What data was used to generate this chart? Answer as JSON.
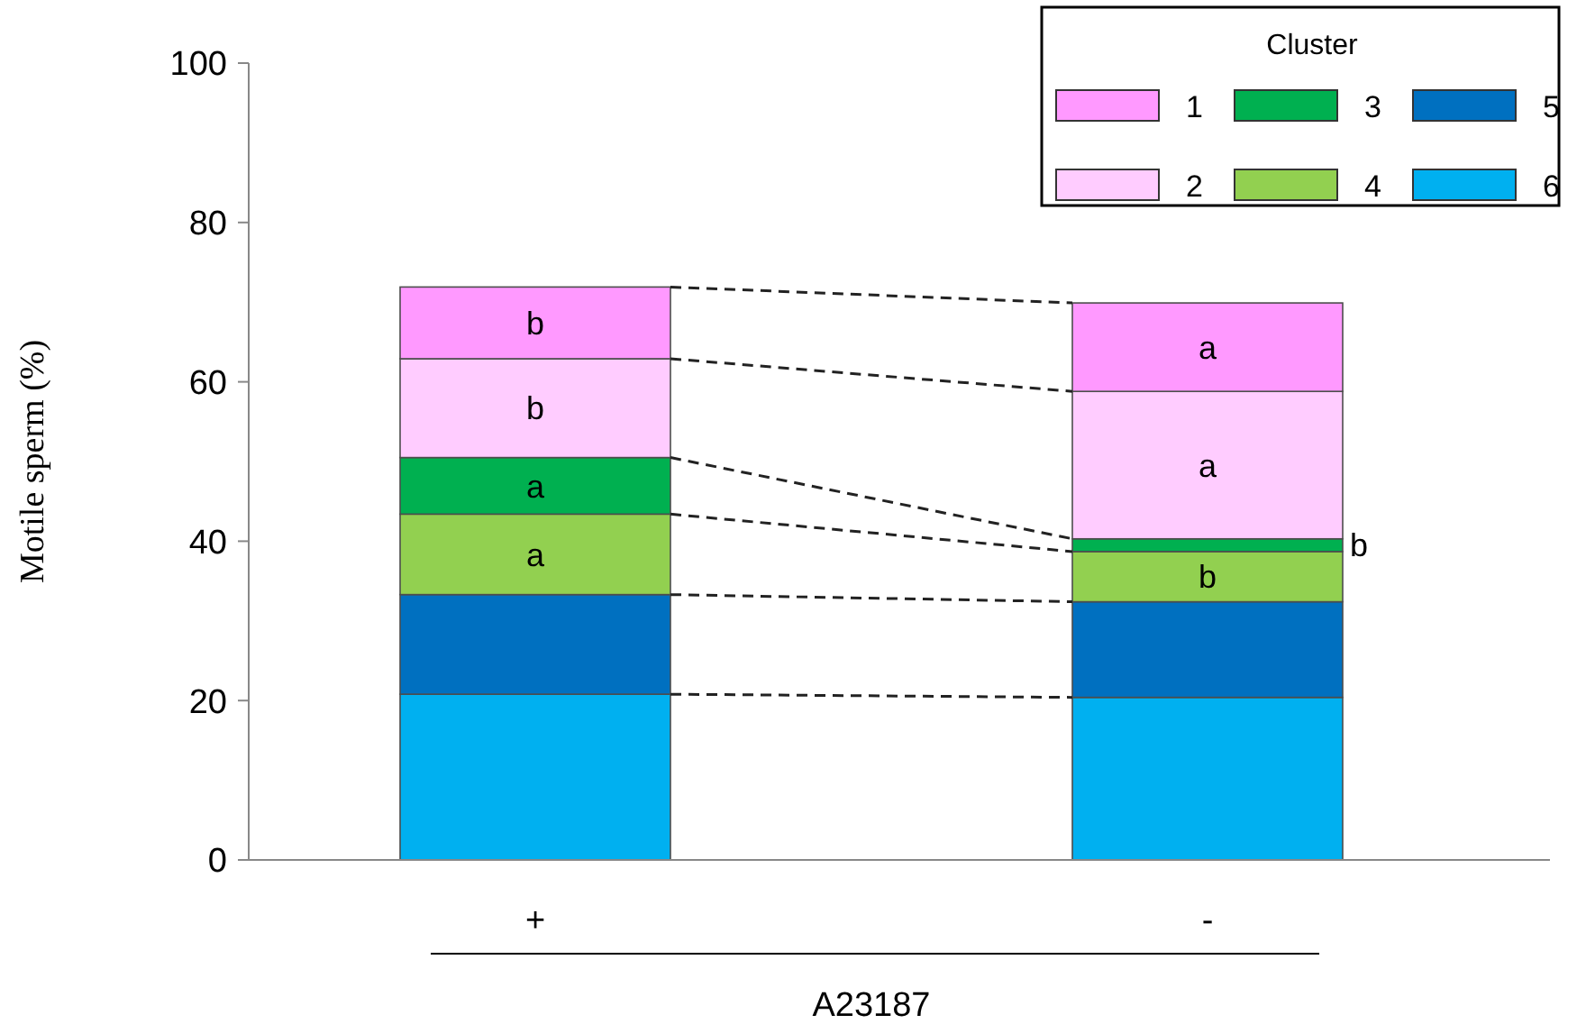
{
  "chart_data": {
    "type": "bar",
    "stacked": true,
    "categories": [
      "+",
      "-"
    ],
    "xlabel": "A23187",
    "ylabel": "Motile sperm (%)",
    "ylim": [
      0,
      100
    ],
    "yticks": [
      0,
      20,
      40,
      60,
      80,
      100
    ],
    "grid": false,
    "legend": "top right",
    "legend_title": "Cluster",
    "series": [
      {
        "name": "6",
        "color": "#00b0f0",
        "values": [
          20.8,
          20.4
        ]
      },
      {
        "name": "5",
        "color": "#0070c0",
        "values": [
          12.5,
          12.0
        ]
      },
      {
        "name": "4",
        "color": "#92d050",
        "values": [
          10.1,
          6.3
        ],
        "value_labels": [
          "a",
          "b"
        ]
      },
      {
        "name": "3",
        "color": "#00b050",
        "values": [
          7.1,
          1.6
        ],
        "value_labels": [
          "a",
          "b"
        ]
      },
      {
        "name": "2",
        "color": "#ffccff",
        "values": [
          12.4,
          18.5
        ],
        "value_labels": [
          "b",
          "a"
        ]
      },
      {
        "name": "1",
        "color": "#ff99ff",
        "values": [
          9.0,
          11.1
        ],
        "value_labels": [
          "b",
          "a"
        ]
      }
    ]
  }
}
